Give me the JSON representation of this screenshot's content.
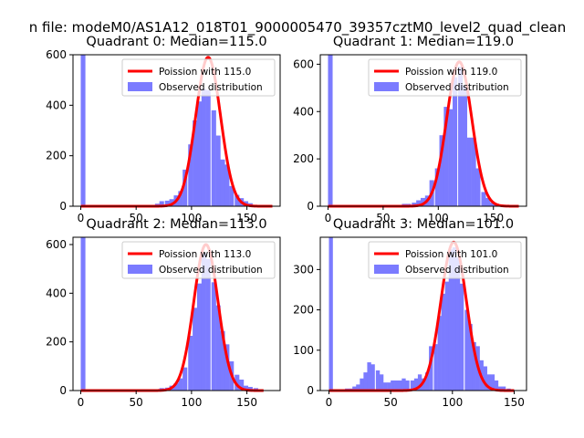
{
  "figure": {
    "suptitle": "n file: modeM0/AS1A12_018T01_9000005470_39357cztM0_level2_quad_clean"
  },
  "chart_data": [
    {
      "type": "bar",
      "title": "Quadrant 0: Median=115.0",
      "xlim": [
        -7,
        180
      ],
      "ylim": [
        0,
        600
      ],
      "xticks": [
        0,
        50,
        100,
        150
      ],
      "yticks": [
        0,
        200,
        400,
        600
      ],
      "legend": {
        "placement": "top-right",
        "entries": [
          "Poission with 115.0",
          "Observed distribution"
        ]
      },
      "series": [
        {
          "name": "Poission with 115.0",
          "kind": "line",
          "color": "#ff0000",
          "mean": 115,
          "amplitude": 590,
          "sigma": 11.2,
          "x_range": [
            0,
            173
          ]
        },
        {
          "name": "Observed distribution",
          "kind": "histogram",
          "color": "#7b7bff",
          "bin_width": 4.2,
          "bins": [
            [
              0,
              600
            ],
            [
              67,
              10
            ],
            [
              71,
              20
            ],
            [
              76,
              22
            ],
            [
              80,
              28
            ],
            [
              84,
              43
            ],
            [
              88,
              60
            ],
            [
              92,
              145
            ],
            [
              97,
              245
            ],
            [
              101,
              340
            ],
            [
              105,
              415
            ],
            [
              109,
              465
            ],
            [
              113,
              460
            ],
            [
              118,
              380
            ],
            [
              122,
              280
            ],
            [
              126,
              185
            ],
            [
              130,
              165
            ],
            [
              134,
              80
            ],
            [
              139,
              45
            ],
            [
              143,
              32
            ],
            [
              147,
              20
            ],
            [
              151,
              12
            ]
          ]
        }
      ]
    },
    {
      "type": "bar",
      "title": "Quadrant 1: Median=119.0",
      "xlim": [
        -7,
        180
      ],
      "ylim": [
        0,
        640
      ],
      "xticks": [
        0,
        50,
        100,
        150
      ],
      "yticks": [
        0,
        200,
        400,
        600
      ],
      "legend": {
        "placement": "top-right",
        "entries": [
          "Poission with 119.0",
          "Observed distribution"
        ]
      },
      "series": [
        {
          "name": "Poission with 119.0",
          "kind": "line",
          "color": "#ff0000",
          "mean": 119,
          "amplitude": 610,
          "sigma": 11.4,
          "x_range": [
            0,
            173
          ]
        },
        {
          "name": "Observed distribution",
          "kind": "histogram",
          "color": "#7b7bff",
          "bin_width": 4.2,
          "bins": [
            [
              0,
              640
            ],
            [
              67,
              10
            ],
            [
              71,
              10
            ],
            [
              76,
              15
            ],
            [
              80,
              25
            ],
            [
              84,
              35
            ],
            [
              88,
              45
            ],
            [
              92,
              110
            ],
            [
              97,
              160
            ],
            [
              101,
              300
            ],
            [
              105,
              420
            ],
            [
              109,
              410
            ],
            [
              113,
              545
            ],
            [
              118,
              590
            ],
            [
              122,
              510
            ],
            [
              126,
              290
            ],
            [
              130,
              290
            ],
            [
              134,
              160
            ],
            [
              139,
              60
            ],
            [
              143,
              35
            ],
            [
              147,
              15
            ],
            [
              151,
              10
            ]
          ]
        }
      ]
    },
    {
      "type": "bar",
      "title": "Quadrant 2: Median=113.0",
      "xlim": [
        -7,
        180
      ],
      "ylim": [
        0,
        630
      ],
      "xticks": [
        0,
        50,
        100,
        150
      ],
      "yticks": [
        0,
        200,
        400,
        600
      ],
      "legend": {
        "placement": "top-right",
        "entries": [
          "Poission with 113.0",
          "Observed distribution"
        ]
      },
      "series": [
        {
          "name": "Poission with 113.0",
          "kind": "line",
          "color": "#ff0000",
          "mean": 113,
          "amplitude": 600,
          "sigma": 11,
          "x_range": [
            0,
            165
          ]
        },
        {
          "name": "Observed distribution",
          "kind": "histogram",
          "color": "#7b7bff",
          "bin_width": 4.2,
          "bins": [
            [
              0,
              630
            ],
            [
              67,
              5
            ],
            [
              71,
              10
            ],
            [
              76,
              12
            ],
            [
              80,
              20
            ],
            [
              84,
              30
            ],
            [
              88,
              50
            ],
            [
              92,
              95
            ],
            [
              97,
              225
            ],
            [
              101,
              340
            ],
            [
              105,
              440
            ],
            [
              109,
              565
            ],
            [
              113,
              540
            ],
            [
              118,
              445
            ],
            [
              122,
              350
            ],
            [
              126,
              245
            ],
            [
              130,
              190
            ],
            [
              134,
              120
            ],
            [
              139,
              65
            ],
            [
              143,
              45
            ],
            [
              147,
              20
            ],
            [
              151,
              15
            ],
            [
              156,
              10
            ],
            [
              160,
              5
            ]
          ]
        }
      ]
    },
    {
      "type": "bar",
      "title": "Quadrant 3: Median=101.0",
      "xlim": [
        -7,
        160
      ],
      "ylim": [
        0,
        380
      ],
      "xticks": [
        0,
        50,
        100,
        150
      ],
      "yticks": [
        0,
        100,
        200,
        300
      ],
      "legend": {
        "placement": "top-right",
        "entries": [
          "Poission with 101.0",
          "Observed distribution"
        ]
      },
      "series": [
        {
          "name": "Poission with 101.0",
          "kind": "line",
          "color": "#ff0000",
          "mean": 101,
          "amplitude": 368,
          "sigma": 10.3,
          "x_range": [
            0,
            150
          ]
        },
        {
          "name": "Observed distribution",
          "kind": "histogram",
          "color": "#7b7bff",
          "bin_width": 3.2,
          "bins": [
            [
              0,
              380
            ],
            [
              13,
              5
            ],
            [
              16,
              5
            ],
            [
              19,
              10
            ],
            [
              22,
              15
            ],
            [
              25,
              30
            ],
            [
              28,
              45
            ],
            [
              31,
              70
            ],
            [
              34,
              65
            ],
            [
              38,
              50
            ],
            [
              41,
              40
            ],
            [
              44,
              20
            ],
            [
              47,
              20
            ],
            [
              50,
              25
            ],
            [
              53,
              25
            ],
            [
              56,
              25
            ],
            [
              59,
              30
            ],
            [
              62,
              25
            ],
            [
              66,
              25
            ],
            [
              69,
              30
            ],
            [
              72,
              40
            ],
            [
              75,
              30
            ],
            [
              78,
              45
            ],
            [
              81,
              110
            ],
            [
              85,
              115
            ],
            [
              88,
              185
            ],
            [
              91,
              240
            ],
            [
              94,
              270
            ],
            [
              97,
              350
            ],
            [
              100,
              355
            ],
            [
              103,
              330
            ],
            [
              106,
              265
            ],
            [
              110,
              200
            ],
            [
              113,
              165
            ],
            [
              116,
              120
            ],
            [
              119,
              110
            ],
            [
              122,
              75
            ],
            [
              125,
              60
            ],
            [
              128,
              40
            ],
            [
              131,
              40
            ],
            [
              134,
              25
            ],
            [
              137,
              10
            ],
            [
              140,
              10
            ],
            [
              144,
              5
            ]
          ]
        }
      ]
    }
  ]
}
